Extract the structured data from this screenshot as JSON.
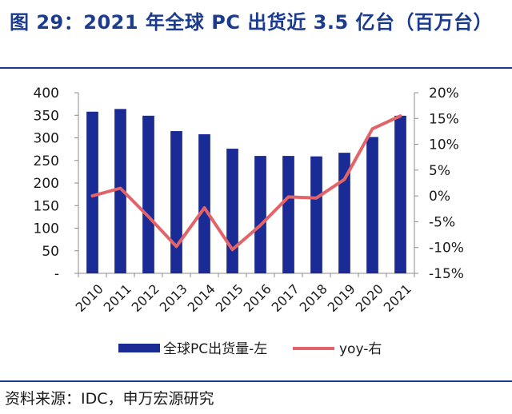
{
  "header": {
    "title": "图 29：2021 年全球 PC 出货近 3.5 亿台（百万台）"
  },
  "footer": {
    "source": "资料来源：IDC，申万宏源研究"
  },
  "colors": {
    "title": "#1b3b8f",
    "bar": "#1a2b96",
    "line": "#e26468",
    "text": "#1a1a1a"
  },
  "chart_data": {
    "type": "bar",
    "categories": [
      "2010",
      "2011",
      "2012",
      "2013",
      "2014",
      "2015",
      "2016",
      "2017",
      "2018",
      "2019",
      "2020",
      "2021"
    ],
    "y_left": {
      "ticks": [
        "400",
        "350",
        "300",
        "250",
        "200",
        "150",
        "100",
        "50",
        "-"
      ],
      "ylim": [
        0,
        400
      ]
    },
    "y_right": {
      "ticks": [
        "20%",
        "15%",
        "10%",
        "5%",
        "0%",
        "-5%",
        "-10%",
        "-15%"
      ],
      "ylim": [
        -15,
        20
      ]
    },
    "series": [
      {
        "name": "全球PC出货量-左",
        "type": "bar",
        "axis": "left",
        "values": [
          358,
          364,
          349,
          315,
          308,
          276,
          260,
          260,
          259,
          267,
          302,
          349
        ]
      },
      {
        "name": "yoy-右",
        "type": "line",
        "axis": "right",
        "values": [
          0.0,
          1.5,
          -4.0,
          -9.8,
          -2.3,
          -10.4,
          -5.7,
          -0.2,
          -0.4,
          3.2,
          13.0,
          15.5
        ]
      }
    ],
    "legend": "bottom"
  }
}
